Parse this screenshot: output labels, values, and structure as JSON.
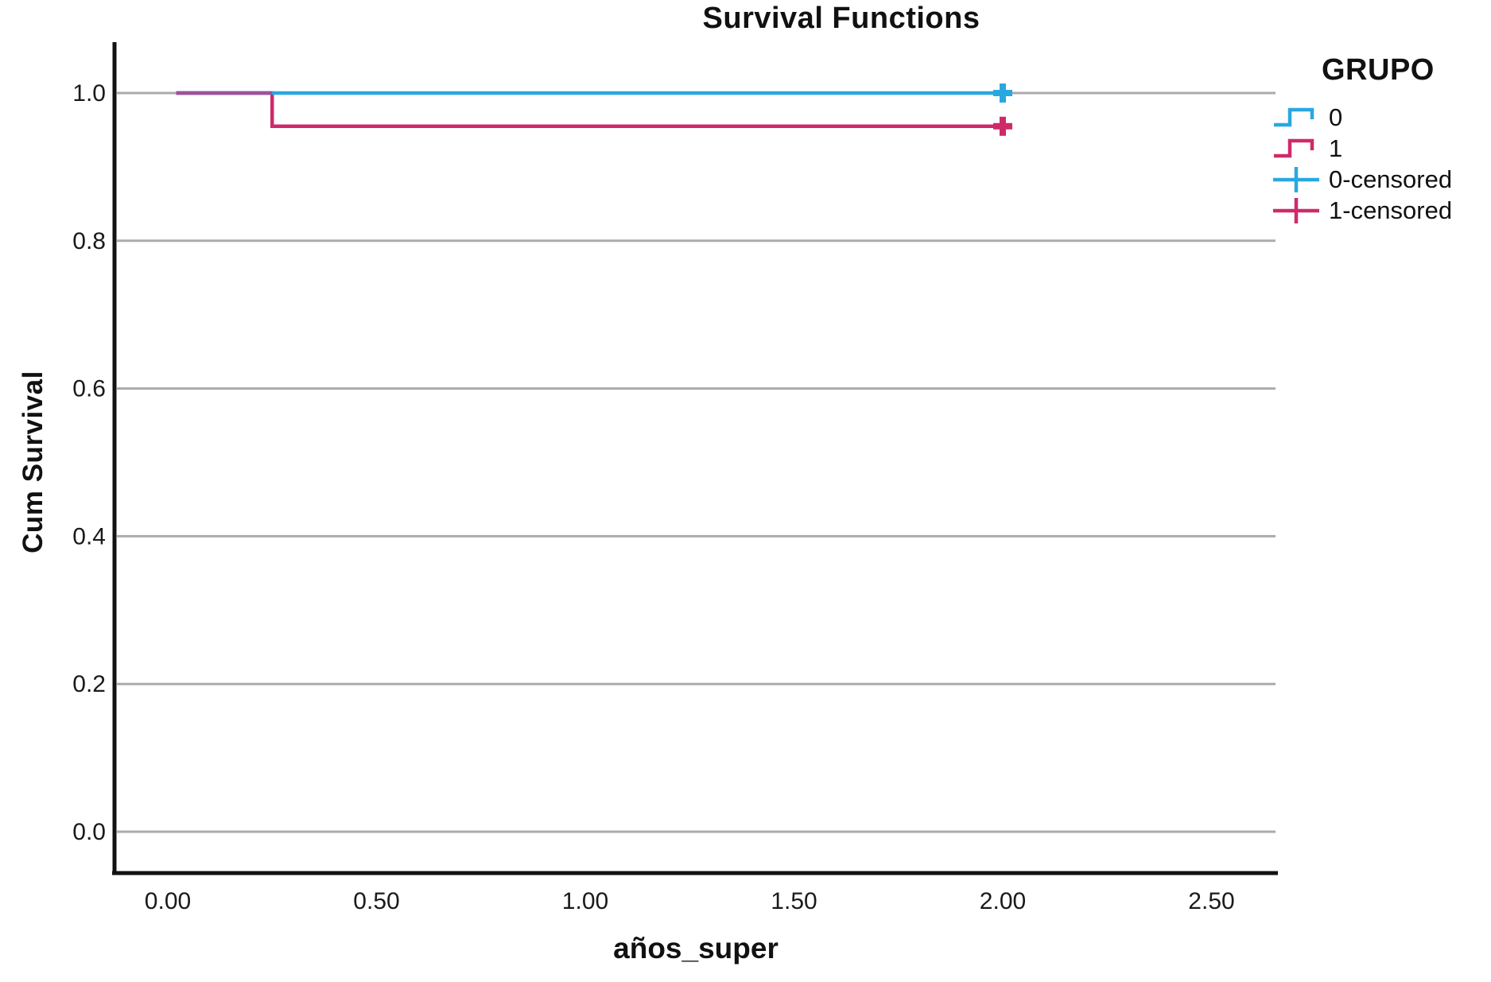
{
  "chart_data": {
    "type": "line",
    "subtype": "kaplan-meier-step",
    "title": "Survival Functions",
    "xlabel": "años_super",
    "ylabel": "Cum Survival",
    "legend_title": "GRUPO",
    "legend_position": "right",
    "grid": "horizontal",
    "xlim": [
      -0.12,
      2.65
    ],
    "ylim": [
      -0.07,
      1.07
    ],
    "x_ticks": [
      0.0,
      0.5,
      1.0,
      1.5,
      2.0,
      2.5
    ],
    "x_tick_labels": [
      "0.00",
      "0.50",
      "1.00",
      "1.50",
      "2.00",
      "2.50"
    ],
    "y_ticks": [
      0.0,
      0.2,
      0.4,
      0.6,
      0.8,
      1.0
    ],
    "y_tick_labels": [
      "0.0",
      "0.2",
      "0.4",
      "0.6",
      "0.8",
      "1.0"
    ],
    "series": [
      {
        "name": "1",
        "color": "#CE2A6A",
        "points": [
          [
            0.02,
            1.0
          ],
          [
            0.25,
            1.0
          ],
          [
            0.25,
            0.955
          ],
          [
            2.0,
            0.955
          ]
        ],
        "censored": [
          [
            2.0,
            0.955
          ]
        ]
      },
      {
        "name": "0",
        "color": "#29A8E0",
        "points": [
          [
            0.02,
            1.0
          ],
          [
            2.0,
            1.0
          ]
        ],
        "censored": [
          [
            2.0,
            1.0
          ]
        ]
      }
    ],
    "overlap_segments": [
      {
        "color": "#9E519B",
        "from": [
          0.02,
          1.0
        ],
        "to": [
          0.25,
          1.0
        ]
      }
    ],
    "legend": [
      {
        "label": "0",
        "symbol": "step",
        "color": "#29A8E0"
      },
      {
        "label": "1",
        "symbol": "step",
        "color": "#CE2A6A"
      },
      {
        "label": "0-censored",
        "symbol": "plus",
        "color": "#29A8E0"
      },
      {
        "label": "1-censored",
        "symbol": "plus",
        "color": "#CE2A6A"
      }
    ]
  },
  "colors": {
    "gridline": "#ABABAB",
    "axis": "#121212",
    "background": "#ffffff",
    "text": "#1a1a1a"
  }
}
